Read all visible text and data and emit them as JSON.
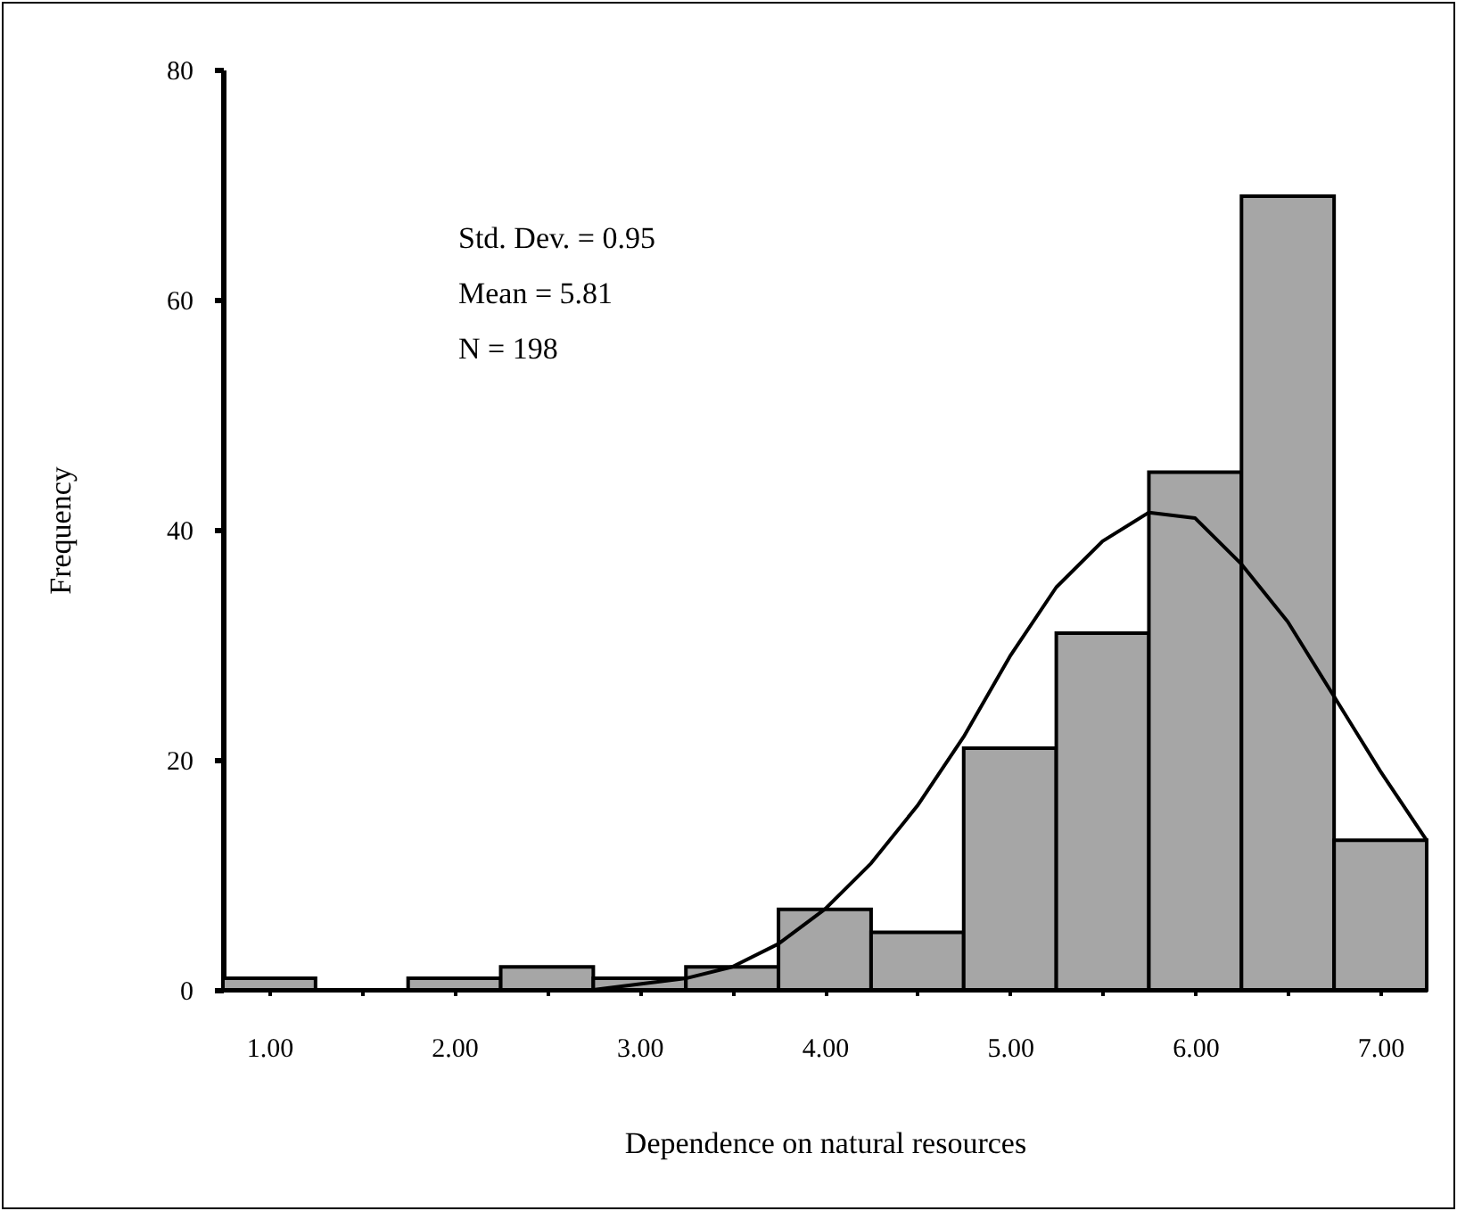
{
  "chart_data": {
    "type": "histogram",
    "xlabel": "Dependence on natural resources",
    "ylabel": "Frequency",
    "annotations": [
      "Std. Dev. = 0.95",
      "Mean = 5.81",
      "N = 198"
    ],
    "bins": [
      0.75,
      1.25,
      1.75,
      2.25,
      2.75,
      3.25,
      3.75,
      4.25,
      4.75,
      5.25,
      5.75,
      6.25,
      6.75,
      7.25
    ],
    "values": [
      1,
      0,
      1,
      2,
      1,
      2,
      7,
      5,
      21,
      31,
      45,
      69,
      13
    ],
    "color": "#a6a6a6",
    "series": [
      {
        "type": "line",
        "color": "#000000",
        "x": [
          2.5,
          2.75,
          3.0,
          3.25,
          3.5,
          3.75,
          4.0,
          4.25,
          4.5,
          4.75,
          5.0,
          5.25,
          5.5,
          5.75,
          6.0,
          6.25,
          6.5,
          6.75,
          7.0,
          7.25
        ],
        "values": [
          0,
          0,
          0.5,
          1,
          2,
          4,
          7,
          11,
          16,
          22,
          29,
          35,
          39,
          41.5,
          41,
          37,
          32,
          25.5,
          19,
          13
        ]
      }
    ],
    "xlim": [
      0.75,
      7.25
    ],
    "xticks": [
      {
        "value": 1,
        "label": "1.00"
      },
      {
        "value": 1.5,
        "label": null
      },
      {
        "value": 2,
        "label": "2.00"
      },
      {
        "value": 2.5,
        "label": null
      },
      {
        "value": 3,
        "label": "3.00"
      },
      {
        "value": 3.5,
        "label": null
      },
      {
        "value": 4,
        "label": "4.00"
      },
      {
        "value": 4.5,
        "label": null
      },
      {
        "value": 5,
        "label": "5.00"
      },
      {
        "value": 5.5,
        "label": null
      },
      {
        "value": 6,
        "label": "6.00"
      },
      {
        "value": 6.5,
        "label": null
      },
      {
        "value": 7,
        "label": "7.00"
      }
    ],
    "ylim": [
      0,
      80
    ],
    "yticks": [
      0,
      20,
      40,
      60,
      80
    ],
    "grid": false,
    "marker": "none",
    "line_style": "solid"
  }
}
